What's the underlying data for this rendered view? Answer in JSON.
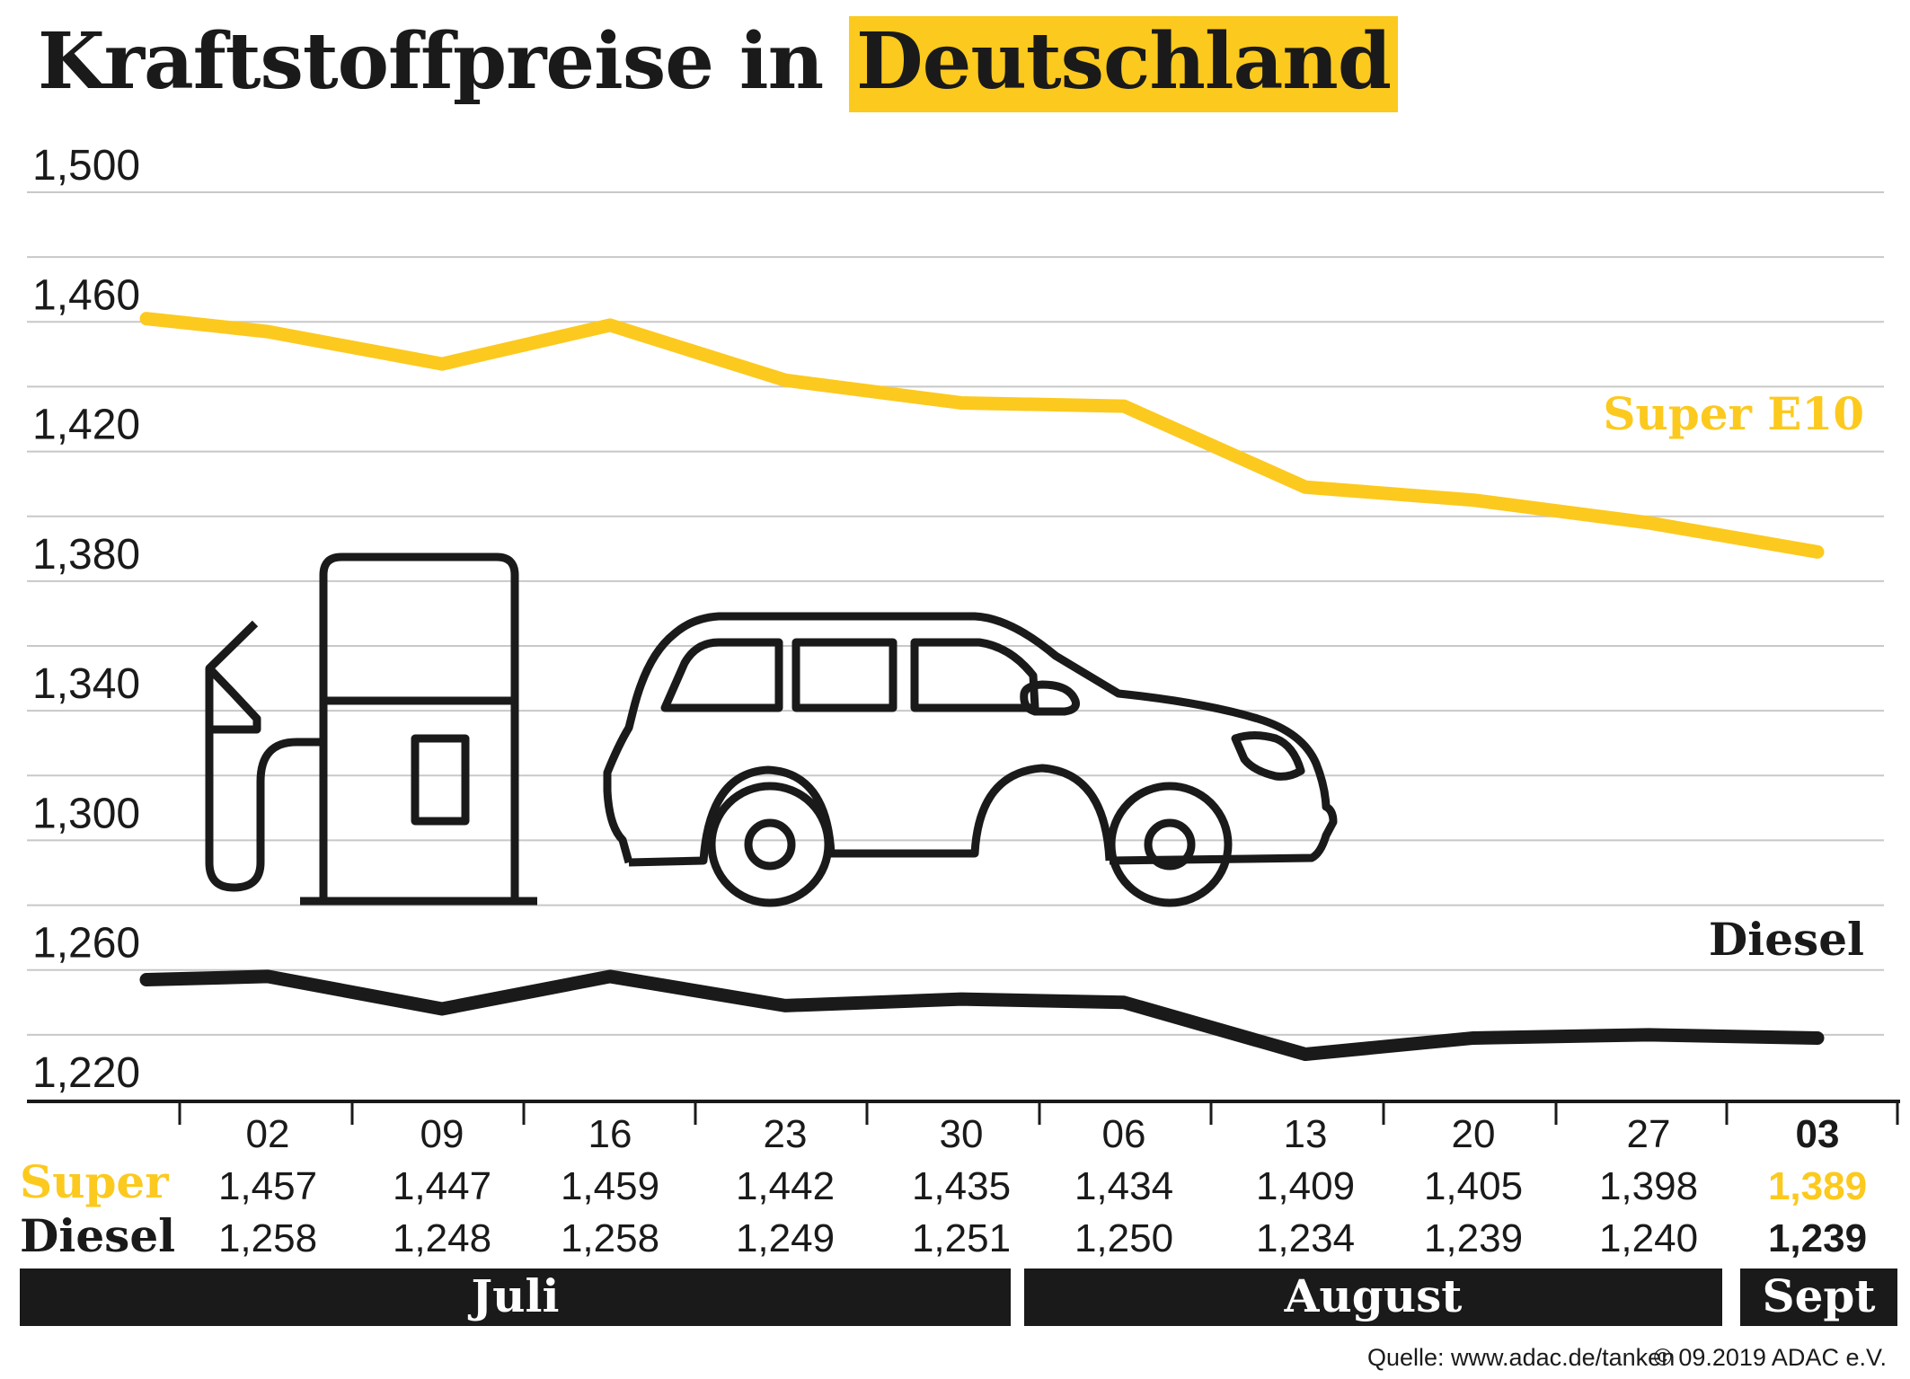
{
  "title": {
    "prefix": "Kraftstoffpreise in",
    "highlight": "Deutschland"
  },
  "colors": {
    "super": "#fcc91e",
    "diesel": "#1a1a1a",
    "grid": "#c8c8c8",
    "month_bar": "#1a1a1a"
  },
  "chart_data": {
    "type": "line",
    "title": "Kraftstoffpreise in Deutschland",
    "xlabel": "",
    "ylabel": "",
    "ylim": [
      1.22,
      1.5
    ],
    "yticks": [
      1.5,
      1.46,
      1.42,
      1.38,
      1.34,
      1.3,
      1.26,
      1.22
    ],
    "ytick_labels": [
      "1,500",
      "1,460",
      "1,420",
      "1,380",
      "1,340",
      "1,300",
      "1,260",
      "1,220"
    ],
    "grid_step": 0.02,
    "grid": true,
    "categories": [
      "02",
      "09",
      "16",
      "23",
      "30",
      "06",
      "13",
      "20",
      "27",
      "03"
    ],
    "months": [
      {
        "label": "Juli",
        "from": 0,
        "to": 4
      },
      {
        "label": "August",
        "from": 5,
        "to": 8
      },
      {
        "label": "Sept",
        "from": 9,
        "to": 9
      }
    ],
    "series": [
      {
        "name": "Super E10",
        "row_label": "Super",
        "color": "#fcc91e",
        "values": [
          1.457,
          1.447,
          1.459,
          1.442,
          1.435,
          1.434,
          1.409,
          1.405,
          1.398,
          1.389
        ],
        "value_labels": [
          "1,457",
          "1,447",
          "1,459",
          "1,442",
          "1,435",
          "1,434",
          "1,409",
          "1,405",
          "1,398",
          "1,389"
        ],
        "start_value": 1.461
      },
      {
        "name": "Diesel",
        "row_label": "Diesel",
        "color": "#1a1a1a",
        "values": [
          1.258,
          1.248,
          1.258,
          1.249,
          1.251,
          1.25,
          1.234,
          1.239,
          1.24,
          1.239
        ],
        "value_labels": [
          "1,258",
          "1,248",
          "1,258",
          "1,249",
          "1,251",
          "1,250",
          "1,234",
          "1,239",
          "1,240",
          "1,239"
        ],
        "start_value": 1.257
      }
    ],
    "legend": "inline-right"
  },
  "footer": {
    "source": "Quelle: www.adac.de/tanken",
    "copyright": "© 09.2019  ADAC e.V."
  },
  "icons": [
    "fuel-pump-icon",
    "car-icon"
  ]
}
